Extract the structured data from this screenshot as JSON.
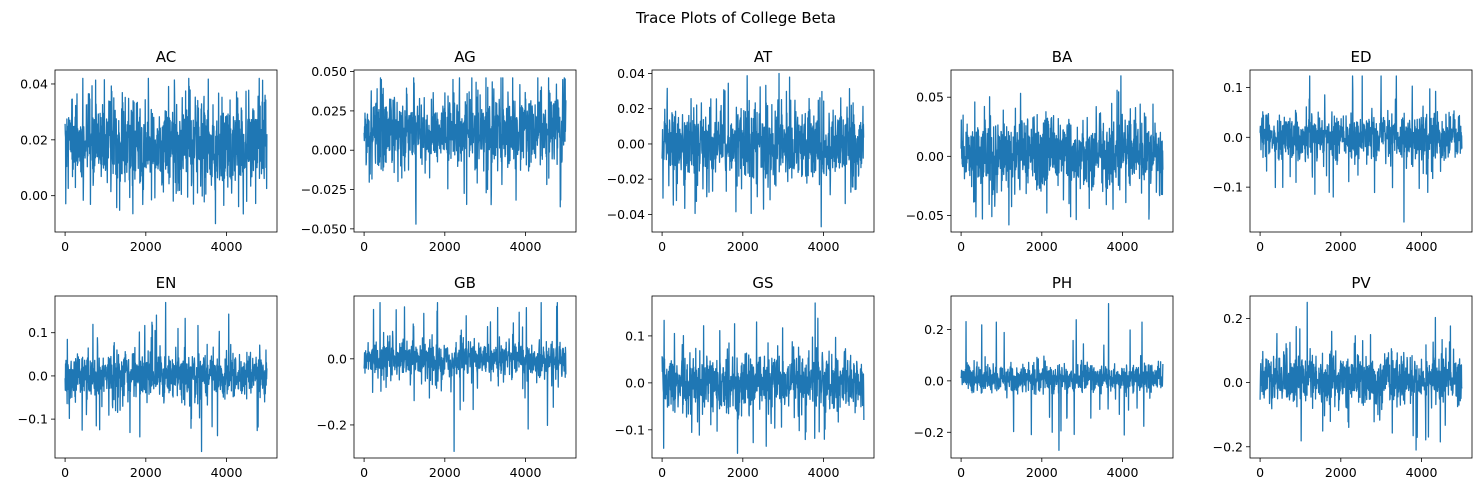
{
  "figure": {
    "title": "Trace Plots of College Beta"
  },
  "colors": {
    "line": "#1f77b4",
    "axis": "#000000",
    "background": "#ffffff"
  },
  "chart_data": [
    {
      "type": "line",
      "title": "AC",
      "xlim": [
        -250,
        5250
      ],
      "ylim": [
        -0.013,
        0.045
      ],
      "x_ticks": [
        0,
        2000,
        4000
      ],
      "x_tick_labels": [
        "0",
        "2000",
        "4000"
      ],
      "y_ticks": [
        0.0,
        0.02,
        0.04
      ],
      "y_tick_labels": [
        "0.00",
        "0.02",
        "0.04"
      ],
      "x_range": [
        0,
        4999
      ],
      "center": 0.018,
      "band": [
        0.004,
        0.033
      ],
      "series": [
        {
          "x_range": [
            0,
            4999
          ],
          "min": -0.01,
          "max": 0.042
        }
      ]
    },
    {
      "type": "line",
      "title": "AG",
      "xlim": [
        -250,
        5250
      ],
      "ylim": [
        -0.052,
        0.051
      ],
      "x_ticks": [
        0,
        2000,
        4000
      ],
      "x_tick_labels": [
        "0",
        "2000",
        "4000"
      ],
      "y_ticks": [
        -0.05,
        -0.025,
        0.0,
        0.025,
        0.05
      ],
      "y_tick_labels": [
        "−0.050",
        "−0.025",
        "0.000",
        "0.025",
        "0.050"
      ],
      "center": 0.012,
      "band": [
        -0.008,
        0.033
      ],
      "series": [
        {
          "x_range": [
            0,
            4999
          ],
          "min": -0.047,
          "max": 0.046
        }
      ]
    },
    {
      "type": "line",
      "title": "AT",
      "xlim": [
        -250,
        5250
      ],
      "ylim": [
        -0.05,
        0.042
      ],
      "x_ticks": [
        0,
        2000,
        4000
      ],
      "x_tick_labels": [
        "0",
        "2000",
        "4000"
      ],
      "y_ticks": [
        -0.04,
        -0.02,
        0.0,
        0.02,
        0.04
      ],
      "y_tick_labels": [
        "−0.04",
        "−0.02",
        "0.00",
        "0.02",
        "0.04"
      ],
      "center": -0.001,
      "band": [
        -0.018,
        0.02
      ],
      "series": [
        {
          "x_range": [
            0,
            4999
          ],
          "min": -0.047,
          "max": 0.04
        }
      ]
    },
    {
      "type": "line",
      "title": "BA",
      "xlim": [
        -250,
        5250
      ],
      "ylim": [
        -0.064,
        0.073
      ],
      "x_ticks": [
        0,
        2000,
        4000
      ],
      "x_tick_labels": [
        "0",
        "2000",
        "4000"
      ],
      "y_ticks": [
        -0.05,
        0.0,
        0.05
      ],
      "y_tick_labels": [
        "−0.05",
        "0.00",
        "0.05"
      ],
      "center": 0.002,
      "band": [
        -0.025,
        0.03
      ],
      "series": [
        {
          "x_range": [
            0,
            4999
          ],
          "min": -0.058,
          "max": 0.068
        }
      ]
    },
    {
      "type": "line",
      "title": "ED",
      "xlim": [
        -250,
        5250
      ],
      "ylim": [
        -0.19,
        0.135
      ],
      "x_ticks": [
        0,
        2000,
        4000
      ],
      "x_tick_labels": [
        "0",
        "2000",
        "4000"
      ],
      "y_ticks": [
        -0.1,
        0.0,
        0.1
      ],
      "y_tick_labels": [
        "−0.1",
        "0.0",
        "0.1"
      ],
      "center": 0.001,
      "band": [
        -0.04,
        0.045
      ],
      "series": [
        {
          "x_range": [
            0,
            4999
          ],
          "min": -0.17,
          "max": 0.123
        }
      ]
    },
    {
      "type": "line",
      "title": "EN",
      "xlim": [
        -250,
        5250
      ],
      "ylim": [
        -0.19,
        0.185
      ],
      "x_ticks": [
        0,
        2000,
        4000
      ],
      "x_tick_labels": [
        "0",
        "2000",
        "4000"
      ],
      "y_ticks": [
        -0.1,
        0.0,
        0.1
      ],
      "y_tick_labels": [
        "−0.1",
        "0.0",
        "0.1"
      ],
      "center": 0.0,
      "band": [
        -0.045,
        0.05
      ],
      "series": [
        {
          "x_range": [
            0,
            4999
          ],
          "min": -0.175,
          "max": 0.17
        }
      ]
    },
    {
      "type": "line",
      "title": "GB",
      "xlim": [
        -250,
        5250
      ],
      "ylim": [
        -0.3,
        0.19
      ],
      "x_ticks": [
        0,
        2000,
        4000
      ],
      "x_tick_labels": [
        "0",
        "2000",
        "4000"
      ],
      "y_ticks": [
        -0.2,
        0.0
      ],
      "y_tick_labels": [
        "−0.2",
        "0.0"
      ],
      "center": 0.0,
      "band": [
        -0.05,
        0.05
      ],
      "series": [
        {
          "x_range": [
            0,
            4999
          ],
          "min": -0.28,
          "max": 0.17
        }
      ]
    },
    {
      "type": "line",
      "title": "GS",
      "xlim": [
        -250,
        5250
      ],
      "ylim": [
        -0.16,
        0.185
      ],
      "x_ticks": [
        0,
        2000,
        4000
      ],
      "x_tick_labels": [
        "0",
        "2000",
        "4000"
      ],
      "y_ticks": [
        -0.1,
        0.0,
        0.1
      ],
      "y_tick_labels": [
        "−0.1",
        "0.0",
        "0.1"
      ],
      "center": 0.0,
      "band": [
        -0.05,
        0.05
      ],
      "series": [
        {
          "x_range": [
            0,
            4999
          ],
          "min": -0.15,
          "max": 0.17
        }
      ]
    },
    {
      "type": "line",
      "title": "PH",
      "xlim": [
        -250,
        5250
      ],
      "ylim": [
        -0.3,
        0.33
      ],
      "x_ticks": [
        0,
        2000,
        4000
      ],
      "x_tick_labels": [
        "0",
        "2000",
        "4000"
      ],
      "y_ticks": [
        -0.2,
        0.0,
        0.2
      ],
      "y_tick_labels": [
        "−0.2",
        "0.0",
        "0.2"
      ],
      "center": 0.01,
      "band": [
        -0.04,
        0.06
      ],
      "series": [
        {
          "x_range": [
            0,
            4999
          ],
          "min": -0.27,
          "max": 0.3
        }
      ]
    },
    {
      "type": "line",
      "title": "PV",
      "xlim": [
        -250,
        5250
      ],
      "ylim": [
        -0.235,
        0.27
      ],
      "x_ticks": [
        0,
        2000,
        4000
      ],
      "x_tick_labels": [
        "0",
        "2000",
        "4000"
      ],
      "y_ticks": [
        -0.2,
        0.0,
        0.2
      ],
      "y_tick_labels": [
        "−0.2",
        "0.0",
        "0.2"
      ],
      "center": 0.01,
      "band": [
        -0.06,
        0.08
      ],
      "series": [
        {
          "x_range": [
            0,
            4999
          ],
          "min": -0.21,
          "max": 0.25
        }
      ]
    }
  ]
}
